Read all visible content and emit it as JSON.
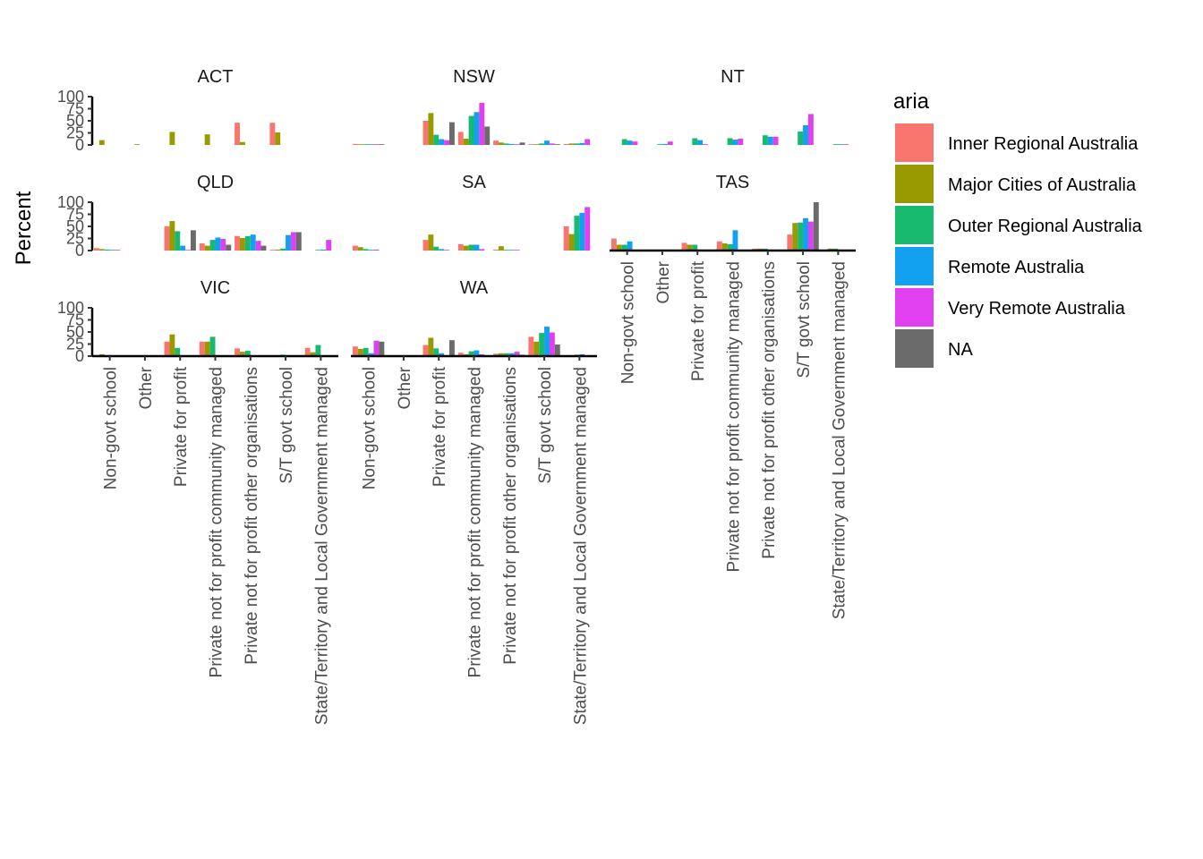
{
  "chart_data": {
    "type": "bar",
    "ylabel": "Percent",
    "ylim": [
      0,
      100
    ],
    "yticks": [
      "0",
      "25",
      "50",
      "75",
      "100"
    ],
    "facet_rows": 3,
    "facet_cols": 3,
    "categories": [
      "Non-govt school",
      "Other",
      "Private for profit",
      "Private not for profit community managed",
      "Private not for profit other organisations",
      "S/T govt school",
      "State/Territory and Local Government managed"
    ],
    "legend": {
      "title": "aria",
      "position": "right",
      "items": [
        {
          "name": "Inner Regional Australia",
          "color": "#F8766D"
        },
        {
          "name": "Major Cities of Australia",
          "color": "#999900"
        },
        {
          "name": "Outer Regional Australia",
          "color": "#18BA6F"
        },
        {
          "name": "Remote Australia",
          "color": "#12A0F0"
        },
        {
          "name": "Very Remote Australia",
          "color": "#E040F0"
        },
        {
          "name": "NA",
          "color": "#6B6B6B"
        }
      ]
    },
    "panels": [
      {
        "name": "ACT",
        "row": 0,
        "col": 0,
        "bars": [
          [
            null,
            10,
            null,
            null,
            null,
            null
          ],
          [
            null,
            0,
            null,
            null,
            null,
            null
          ],
          [
            null,
            27,
            null,
            null,
            null,
            null
          ],
          [
            null,
            22,
            null,
            null,
            null,
            null
          ],
          [
            46,
            6,
            null,
            null,
            null,
            null
          ],
          [
            46,
            26,
            null,
            null,
            null,
            null
          ],
          [
            null,
            null,
            null,
            null,
            null,
            null
          ]
        ]
      },
      {
        "name": "NSW",
        "row": 0,
        "col": 1,
        "bars": [
          [
            2,
            1,
            1,
            0,
            0,
            0
          ],
          [
            null,
            null,
            null,
            null,
            null,
            null
          ],
          [
            50,
            66,
            21,
            12,
            10,
            47
          ],
          [
            27,
            13,
            60,
            68,
            87,
            38
          ],
          [
            9,
            5,
            3,
            2,
            1,
            5
          ],
          [
            1,
            1,
            3,
            9,
            3,
            0
          ],
          [
            2,
            3,
            3,
            4,
            12,
            null
          ]
        ]
      },
      {
        "name": "NT",
        "row": 0,
        "col": 2,
        "bars": [
          [
            null,
            null,
            12,
            9,
            7,
            null
          ],
          [
            null,
            null,
            1,
            2,
            7,
            null
          ],
          [
            null,
            null,
            14,
            10,
            1,
            null
          ],
          [
            null,
            null,
            14,
            11,
            13,
            null
          ],
          [
            null,
            null,
            20,
            17,
            17,
            null
          ],
          [
            null,
            null,
            28,
            41,
            64,
            null
          ],
          [
            null,
            null,
            1,
            1,
            1,
            null
          ]
        ]
      },
      {
        "name": "QLD",
        "row": 1,
        "col": 0,
        "bars": [
          [
            5,
            3,
            2,
            1,
            1,
            null
          ],
          [
            null,
            null,
            null,
            null,
            null,
            null
          ],
          [
            50,
            61,
            40,
            10,
            1,
            42
          ],
          [
            15,
            10,
            22,
            27,
            24,
            12
          ],
          [
            30,
            26,
            30,
            33,
            20,
            10
          ],
          [
            1,
            2,
            4,
            32,
            38,
            38
          ],
          [
            null,
            null,
            1,
            2,
            22,
            null
          ]
        ]
      },
      {
        "name": "SA",
        "row": 1,
        "col": 1,
        "bars": [
          [
            10,
            7,
            3,
            1,
            2,
            null
          ],
          [
            null,
            null,
            null,
            null,
            null,
            null
          ],
          [
            22,
            33,
            8,
            3,
            1,
            null
          ],
          [
            13,
            10,
            12,
            12,
            3,
            null
          ],
          [
            2,
            9,
            1,
            0,
            0,
            null
          ],
          [
            null,
            null,
            null,
            null,
            null,
            null
          ],
          [
            50,
            34,
            72,
            78,
            90,
            null
          ]
        ]
      },
      {
        "name": "TAS",
        "row": 1,
        "col": 2,
        "bars": [
          [
            25,
            12,
            12,
            19,
            null,
            null
          ],
          [
            null,
            null,
            null,
            null,
            null,
            null
          ],
          [
            16,
            12,
            12,
            null,
            null,
            null
          ],
          [
            19,
            15,
            13,
            42,
            null,
            null
          ],
          [
            4,
            4,
            4,
            null,
            null,
            null
          ],
          [
            33,
            57,
            58,
            67,
            60,
            100
          ],
          [
            1,
            4,
            4,
            null,
            null,
            null
          ]
        ]
      },
      {
        "name": "VIC",
        "row": 2,
        "col": 0,
        "bars": [
          [
            2,
            4,
            2,
            null,
            null,
            null
          ],
          [
            null,
            null,
            null,
            null,
            null,
            null
          ],
          [
            30,
            45,
            17,
            null,
            null,
            null
          ],
          [
            30,
            30,
            40,
            null,
            null,
            null
          ],
          [
            16,
            9,
            11,
            null,
            null,
            null
          ],
          [
            1,
            0,
            3,
            null,
            null,
            null
          ],
          [
            17,
            8,
            23,
            null,
            null,
            null
          ]
        ]
      },
      {
        "name": "WA",
        "row": 2,
        "col": 1,
        "bars": [
          [
            20,
            15,
            17,
            6,
            32,
            30
          ],
          [
            null,
            null,
            null,
            null,
            null,
            null
          ],
          [
            23,
            38,
            16,
            6,
            1,
            33
          ],
          [
            7,
            4,
            10,
            12,
            4,
            1
          ],
          [
            5,
            6,
            6,
            6,
            9,
            3
          ],
          [
            40,
            30,
            48,
            61,
            49,
            24
          ],
          [
            1,
            1,
            3,
            4,
            1,
            null
          ]
        ]
      }
    ]
  }
}
